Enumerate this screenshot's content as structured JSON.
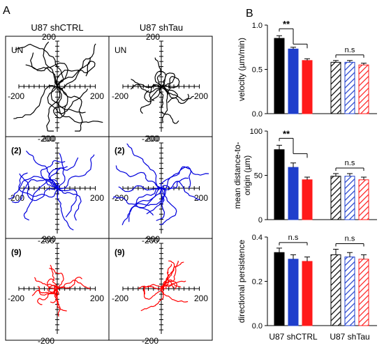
{
  "panels": {
    "a_label": "A",
    "b_label": "B"
  },
  "tracks": {
    "col_titles": [
      "U87 shCTRL",
      "U87 shTau"
    ],
    "row_labels": [
      "UN",
      "(2)",
      "(9)"
    ],
    "axis_ticks": {
      "pos": "200",
      "neg": "-200"
    },
    "row_colors": [
      "#000000",
      "#0000dd",
      "#ff0000"
    ]
  },
  "chart_data": [
    {
      "type": "bar",
      "ylabel": "velocity (µm/min)",
      "ylim": [
        0,
        1.0
      ],
      "yticks": [
        "0.0",
        "0.5",
        "1.0"
      ],
      "groups": [
        "U87 shCTRL",
        "U87 shTau"
      ],
      "conditions": [
        "UN",
        "(2)",
        "(9)"
      ],
      "values": [
        [
          0.85,
          0.73,
          0.6
        ],
        [
          0.58,
          0.58,
          0.55
        ]
      ],
      "errors": [
        [
          0.03,
          0.02,
          0.02
        ],
        [
          0.02,
          0.02,
          0.02
        ]
      ],
      "annotations": [
        "**",
        "n.s"
      ]
    },
    {
      "type": "bar",
      "ylabel": "mean distance-to-origin (µm)",
      "ylim": [
        0,
        100
      ],
      "yticks": [
        "0",
        "50",
        "100"
      ],
      "groups": [
        "U87 shCTRL",
        "U87 shTau"
      ],
      "conditions": [
        "UN",
        "(2)",
        "(9)"
      ],
      "values": [
        [
          79,
          59,
          45
        ],
        [
          49,
          49,
          45
        ]
      ],
      "errors": [
        [
          5,
          5,
          3
        ],
        [
          3,
          3,
          3
        ]
      ],
      "annotations": [
        "**",
        "n.s"
      ]
    },
    {
      "type": "bar",
      "ylabel": "directional persistence",
      "ylim": [
        0,
        0.4
      ],
      "yticks": [
        "0.0",
        "0.2",
        "0.4"
      ],
      "groups": [
        "U87 shCTRL",
        "U87 shTau"
      ],
      "conditions": [
        "UN",
        "(2)",
        "(9)"
      ],
      "values": [
        [
          0.33,
          0.3,
          0.29
        ],
        [
          0.32,
          0.31,
          0.3
        ]
      ],
      "errors": [
        [
          0.02,
          0.02,
          0.02
        ],
        [
          0.025,
          0.02,
          0.02
        ]
      ],
      "annotations": [
        "n.s",
        "n.s"
      ]
    }
  ],
  "colors": {
    "black": "#000000",
    "blue": "#1f3fcc",
    "red": "#ff1a1a"
  }
}
